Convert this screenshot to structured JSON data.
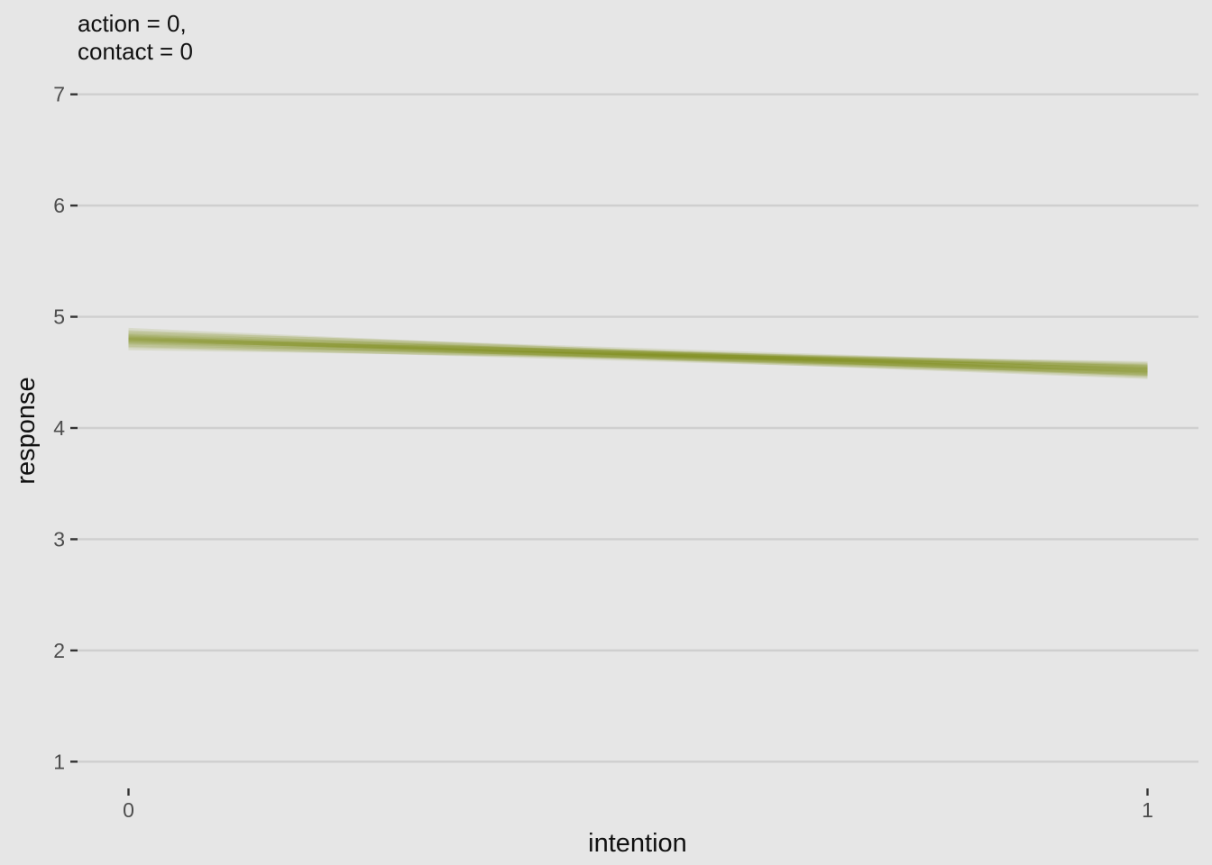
{
  "chart_data": {
    "type": "line",
    "title_lines": [
      "action = 0,",
      "contact = 0"
    ],
    "xlabel": "intention",
    "ylabel": "response",
    "x": [
      0,
      1
    ],
    "xticks": [
      "0",
      "1"
    ],
    "yticks": [
      "1",
      "2",
      "3",
      "4",
      "5",
      "6",
      "7"
    ],
    "xlim": [
      -0.05,
      1.05
    ],
    "ylim": [
      0.8,
      7.2
    ],
    "grid": true,
    "legend": "none",
    "line_color": "#708000",
    "line_opacity": 0.12,
    "series": [
      {
        "values": [
          4.8,
          4.52
        ]
      },
      {
        "values": [
          4.84,
          4.49
        ]
      },
      {
        "values": [
          4.76,
          4.55
        ]
      },
      {
        "values": [
          4.82,
          4.47
        ]
      },
      {
        "values": [
          4.78,
          4.57
        ]
      },
      {
        "values": [
          4.86,
          4.51
        ]
      },
      {
        "values": [
          4.74,
          4.53
        ]
      },
      {
        "values": [
          4.81,
          4.46
        ]
      },
      {
        "values": [
          4.79,
          4.56
        ]
      },
      {
        "values": [
          4.83,
          4.54
        ]
      },
      {
        "values": [
          4.77,
          4.5
        ]
      },
      {
        "values": [
          4.88,
          4.48
        ]
      },
      {
        "values": [
          4.72,
          4.58
        ]
      },
      {
        "values": [
          4.8,
          4.53
        ]
      },
      {
        "values": [
          4.85,
          4.55
        ]
      },
      {
        "values": [
          4.75,
          4.49
        ]
      },
      {
        "values": [
          4.82,
          4.52
        ]
      },
      {
        "values": [
          4.78,
          4.51
        ]
      },
      {
        "values": [
          4.81,
          4.54
        ]
      },
      {
        "values": [
          4.79,
          4.5
        ]
      }
    ]
  }
}
